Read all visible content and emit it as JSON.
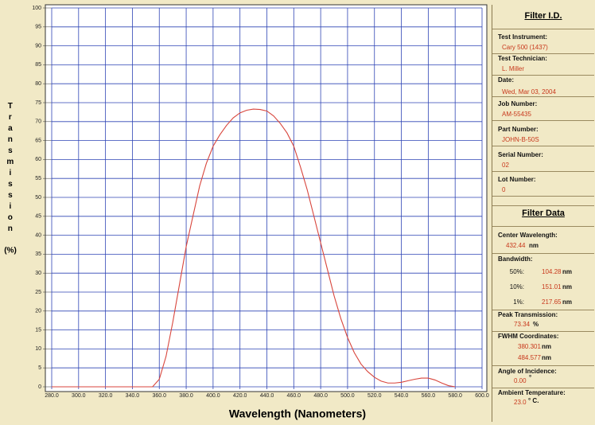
{
  "chart_data": {
    "type": "line",
    "x_label": "Wavelength  (Nanometers)",
    "y_label": "Transmission",
    "y_unit": "(%)",
    "color": "#d8453c",
    "grid": true,
    "xlim": [
      280,
      600
    ],
    "xticks": [
      {
        "value": 280,
        "label": "280.0"
      },
      {
        "value": 300,
        "label": "300.0"
      },
      {
        "value": 320,
        "label": "320.0"
      },
      {
        "value": 340,
        "label": "340.0"
      },
      {
        "value": 360,
        "label": "360.0"
      },
      {
        "value": 380,
        "label": "380.0"
      },
      {
        "value": 400,
        "label": "400.0"
      },
      {
        "value": 420,
        "label": "420.0"
      },
      {
        "value": 440,
        "label": "440.0"
      },
      {
        "value": 460,
        "label": "460.0"
      },
      {
        "value": 480,
        "label": "480.0"
      },
      {
        "value": 500,
        "label": "500.0"
      },
      {
        "value": 520,
        "label": "520.0"
      },
      {
        "value": 540,
        "label": "540.0"
      },
      {
        "value": 560,
        "label": "560.0"
      },
      {
        "value": 580,
        "label": "580.0"
      },
      {
        "value": 600,
        "label": "600.0"
      }
    ],
    "ylim": [
      0,
      100
    ],
    "yticks": [
      0,
      5,
      10,
      15,
      20,
      25,
      30,
      35,
      40,
      45,
      50,
      55,
      60,
      65,
      70,
      75,
      80,
      85,
      90,
      95,
      100
    ],
    "x": [
      280,
      300,
      320,
      340,
      355,
      360,
      365,
      370,
      375,
      380,
      385,
      390,
      395,
      400,
      405,
      410,
      415,
      420,
      425,
      430,
      435,
      440,
      445,
      450,
      455,
      460,
      465,
      470,
      475,
      480,
      485,
      490,
      495,
      500,
      505,
      510,
      515,
      520,
      525,
      530,
      535,
      540,
      545,
      550,
      555,
      560,
      565,
      570,
      575,
      580
    ],
    "values": [
      0,
      0,
      0,
      0,
      0,
      2,
      8,
      17,
      27,
      37,
      45,
      53,
      59,
      63.5,
      66.5,
      69,
      71,
      72.3,
      73,
      73.3,
      73.2,
      72.8,
      71.5,
      69.5,
      67,
      63.5,
      58,
      52,
      45,
      38,
      31,
      24,
      18,
      13,
      9,
      6,
      4,
      2.5,
      1.5,
      1,
      1,
      1.2,
      1.6,
      2,
      2.3,
      2.3,
      1.8,
      1,
      0.3,
      0
    ]
  },
  "panel": {
    "filter_id": {
      "title": "Filter I.D.",
      "fields": [
        {
          "label": "Test Instrument:",
          "value": "Cary 500 (1437)"
        },
        {
          "label": "Test Technician:",
          "value": "L. Miller"
        },
        {
          "label": "Date:",
          "value": "Wed, Mar 03, 2004"
        },
        {
          "label": "Job Number:",
          "value": "AM-55435"
        },
        {
          "label": "Part Number:",
          "value": "JOHN-B-50S"
        },
        {
          "label": "Serial Number:",
          "value": "02"
        },
        {
          "label": "Lot Number:",
          "value": "0"
        }
      ]
    },
    "filter_data": {
      "title": "Filter Data",
      "center_wavelength": {
        "label": "Center Wavelength:",
        "value": "432.44",
        "unit": "nm"
      },
      "bandwidth": {
        "label": "Bandwidth:",
        "rows": [
          {
            "label": "50%:",
            "value": "104.28",
            "unit": "nm"
          },
          {
            "label": "10%:",
            "value": "151.01",
            "unit": "nm"
          },
          {
            "label": "1%:",
            "value": "217.65",
            "unit": "nm"
          }
        ]
      },
      "peak_transmission": {
        "label": "Peak Transmission:",
        "value": "73.34",
        "unit": "%"
      },
      "fwhm": {
        "label": "FWHM Coordinates:",
        "values": [
          "380.301",
          "484.577"
        ],
        "unit": "nm"
      },
      "angle": {
        "label": "Angle of Incidence:",
        "value": "0.00",
        "unit": "°"
      },
      "temperature": {
        "label": "Ambient Temperature:",
        "value": "23.0",
        "unit": "° C."
      }
    }
  }
}
